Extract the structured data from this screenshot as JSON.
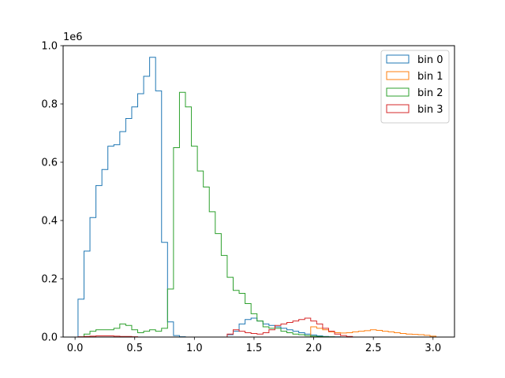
{
  "chart_data": {
    "type": "step-histogram",
    "title": "",
    "xlabel": "",
    "ylabel": "",
    "y_offset_label": "1e6",
    "xlim": [
      -0.1,
      3.18
    ],
    "ylim": [
      0,
      1000000
    ],
    "x_ticks": [
      0.0,
      0.5,
      1.0,
      1.5,
      2.0,
      2.5,
      3.0
    ],
    "x_tick_labels": [
      "0.0",
      "0.5",
      "1.0",
      "1.5",
      "2.0",
      "2.5",
      "3.0"
    ],
    "y_ticks": [
      0,
      200000,
      400000,
      600000,
      800000,
      1000000
    ],
    "y_tick_labels": [
      "0.0",
      "0.2",
      "0.4",
      "0.6",
      "0.8",
      "1.0"
    ],
    "legend": {
      "position": "top-right"
    },
    "series": [
      {
        "name": "bin 0",
        "color": "#1f77b4",
        "bin_edges": [
          0.025,
          0.075,
          0.125,
          0.175,
          0.225,
          0.275,
          0.325,
          0.375,
          0.425,
          0.475,
          0.525,
          0.575,
          0.625,
          0.675,
          0.725,
          0.775,
          0.825,
          0.875,
          0.925,
          0.975,
          1.025,
          1.075,
          1.125,
          1.175,
          1.225,
          1.275,
          1.325,
          1.375,
          1.425,
          1.475,
          1.525,
          1.575,
          1.625,
          1.675,
          1.725,
          1.775,
          1.825,
          1.875,
          1.925,
          1.975,
          2.025,
          2.075,
          2.125,
          2.175,
          2.225,
          2.275
        ],
        "counts": [
          130000,
          295000,
          410000,
          520000,
          575000,
          655000,
          660000,
          705000,
          750000,
          790000,
          835000,
          895000,
          960000,
          845000,
          325000,
          52000,
          5000,
          1000,
          0,
          0,
          0,
          0,
          0,
          0,
          0,
          8000,
          20000,
          45000,
          60000,
          65000,
          55000,
          45000,
          40000,
          35000,
          30000,
          25000,
          20000,
          15000,
          10000,
          7000,
          4000,
          2000,
          1000,
          500,
          0
        ]
      },
      {
        "name": "bin 1",
        "color": "#ff7f0e",
        "bin_edges": [
          1.975,
          2.025,
          2.075,
          2.125,
          2.175,
          2.225,
          2.275,
          2.325,
          2.375,
          2.425,
          2.475,
          2.525,
          2.575,
          2.625,
          2.675,
          2.725,
          2.775,
          2.825,
          2.875,
          2.925,
          2.975,
          3.025
        ],
        "counts": [
          35000,
          30000,
          25000,
          18000,
          15000,
          14000,
          15000,
          18000,
          20000,
          22000,
          25000,
          23000,
          20000,
          18000,
          15000,
          12000,
          10000,
          9000,
          8000,
          6000,
          3000
        ]
      },
      {
        "name": "bin 2",
        "color": "#2ca02c",
        "bin_edges": [
          0.075,
          0.125,
          0.175,
          0.225,
          0.275,
          0.325,
          0.375,
          0.425,
          0.475,
          0.525,
          0.575,
          0.625,
          0.675,
          0.725,
          0.775,
          0.825,
          0.875,
          0.925,
          0.975,
          1.025,
          1.075,
          1.125,
          1.175,
          1.225,
          1.275,
          1.325,
          1.375,
          1.425,
          1.475,
          1.525,
          1.575,
          1.625,
          1.675,
          1.725,
          1.775,
          1.825,
          1.875,
          1.925,
          1.975,
          2.025,
          2.075,
          2.125,
          2.175,
          2.225
        ],
        "counts": [
          10000,
          20000,
          25000,
          25000,
          25000,
          30000,
          45000,
          40000,
          25000,
          15000,
          20000,
          25000,
          20000,
          30000,
          165000,
          650000,
          840000,
          790000,
          655000,
          570000,
          515000,
          430000,
          355000,
          280000,
          205000,
          160000,
          150000,
          115000,
          80000,
          55000,
          35000,
          30000,
          30000,
          20000,
          15000,
          10000,
          8000,
          5000,
          3000,
          2000,
          1000,
          500,
          0
        ]
      },
      {
        "name": "bin 3",
        "color": "#d62728",
        "bin_edges": [
          0.025,
          0.075,
          0.125,
          0.175,
          0.225,
          0.275,
          0.325,
          0.375,
          0.425,
          0.475,
          0.525,
          0.575,
          1.275,
          1.325,
          1.375,
          1.425,
          1.475,
          1.525,
          1.575,
          1.625,
          1.675,
          1.725,
          1.775,
          1.825,
          1.875,
          1.925,
          1.975,
          2.025,
          2.075,
          2.125,
          2.175,
          2.225,
          2.275,
          2.325
        ],
        "counts": [
          1000,
          2000,
          3000,
          4000,
          4000,
          4000,
          3000,
          2000,
          2000,
          1000,
          0,
          0,
          10000,
          25000,
          20000,
          15000,
          12000,
          10000,
          15000,
          25000,
          40000,
          45000,
          50000,
          55000,
          60000,
          65000,
          55000,
          45000,
          30000,
          20000,
          10000,
          5000,
          2000
        ]
      }
    ]
  }
}
